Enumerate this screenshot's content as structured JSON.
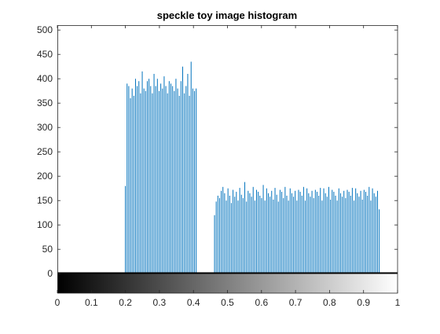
{
  "chart_data": {
    "type": "bar",
    "title": "speckle toy image histogram",
    "xlabel": "",
    "ylabel": "",
    "xlim": [
      0,
      1
    ],
    "ylim": [
      -40,
      510
    ],
    "x_ticks": [
      "0",
      "0.1",
      "0.2",
      "0.3",
      "0.4",
      "0.5",
      "0.6",
      "0.7",
      "0.8",
      "0.9",
      "1"
    ],
    "y_ticks": [
      "0",
      "50",
      "100",
      "150",
      "200",
      "250",
      "300",
      "350",
      "400",
      "450",
      "500"
    ],
    "grid": false,
    "legend": "none",
    "colorbar": "grayscale gradient along x-axis from black (0) to white (1)",
    "bar_color": "#0072BD",
    "series": [
      {
        "segments": [
          {
            "x_start": 0.2,
            "x_end": 0.408,
            "bins": 43,
            "values": [
              180,
              390,
              385,
              360,
              380,
              365,
              400,
              385,
              395,
              370,
              415,
              380,
              375,
              395,
              400,
              385,
              370,
              410,
              385,
              400,
              375,
              390,
              380,
              405,
              385,
              370,
              395,
              390,
              385,
              375,
              400,
              380,
              365,
              395,
              425,
              370,
              385,
              410,
              365,
              435,
              380,
              375,
              380
            ]
          },
          {
            "x_start": 0.462,
            "x_end": 0.946,
            "bins": 99,
            "values": [
              120,
              148,
              160,
              155,
              170,
              178,
              165,
              150,
              175,
              160,
              145,
              172,
              158,
              168,
              150,
              176,
              162,
              155,
              188,
              148,
              170,
              165,
              158,
              178,
              150,
              172,
              168,
              160,
              155,
              182,
              150,
              175,
              165,
              158,
              170,
              152,
              176,
              162,
              148,
              172,
              168,
              155,
              178,
              160,
              150,
              175,
              165,
              158,
              170,
              150,
              172,
              168,
              160,
              178,
              150,
              175,
              165,
              158,
              170,
              155,
              172,
              168,
              160,
              176,
              150,
              175,
              165,
              158,
              178,
              152,
              172,
              168,
              160,
              150,
              175,
              165,
              158,
              170,
              155,
              172,
              168,
              160,
              176,
              150,
              175,
              165,
              158,
              170,
              152,
              172,
              168,
              160,
              178,
              150,
              175,
              165,
              158,
              170,
              132
            ]
          }
        ]
      }
    ]
  }
}
